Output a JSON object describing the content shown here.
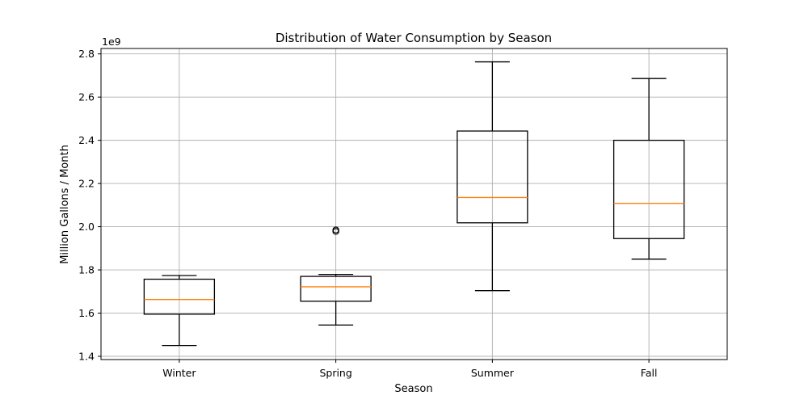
{
  "chart_data": {
    "type": "box",
    "title": "Distribution of Water Consumption by Season",
    "xlabel": "Season",
    "ylabel": "Million Gallons / Month",
    "y_offset_label": "1e9",
    "y_scale_factor": 1000000000,
    "ylim": [
      1.385,
      2.825
    ],
    "yticks": [
      1.4,
      1.6,
      1.8,
      2.0,
      2.2,
      2.4,
      2.6,
      2.8
    ],
    "ytick_labels": [
      "1.4",
      "1.6",
      "1.8",
      "2.0",
      "2.2",
      "2.4",
      "2.6",
      "2.8"
    ],
    "grid": true,
    "categories": [
      "Winter",
      "Spring",
      "Summer",
      "Fall"
    ],
    "boxes": [
      {
        "whisker_low": 1.45,
        "q1": 1.595,
        "median": 1.663,
        "q3": 1.757,
        "whisker_high": 1.774,
        "fliers": []
      },
      {
        "whisker_low": 1.545,
        "q1": 1.655,
        "median": 1.722,
        "q3": 1.77,
        "whisker_high": 1.779,
        "fliers": [
          1.978,
          1.985
        ]
      },
      {
        "whisker_low": 1.704,
        "q1": 2.018,
        "median": 2.135,
        "q3": 2.443,
        "whisker_high": 2.763,
        "fliers": []
      },
      {
        "whisker_low": 1.85,
        "q1": 1.945,
        "median": 2.108,
        "q3": 2.4,
        "whisker_high": 2.686,
        "fliers": []
      }
    ],
    "colors": {
      "box": "#000000",
      "median": "#ff7f0e",
      "grid": "#b0b0b0"
    }
  }
}
